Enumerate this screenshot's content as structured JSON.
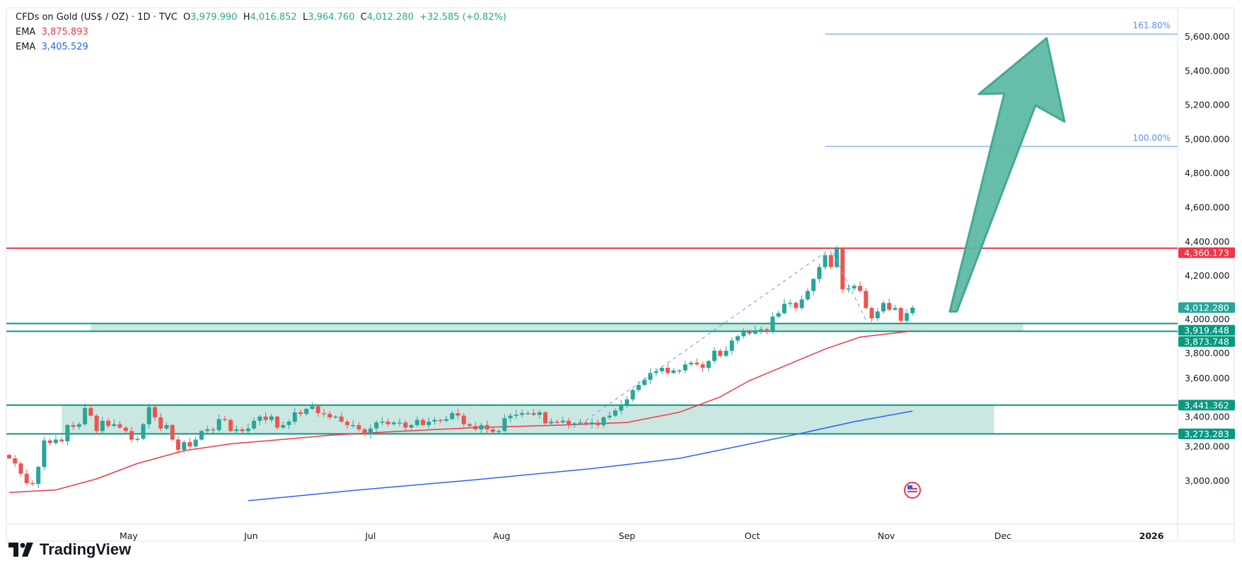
{
  "header": {
    "symbol": "CFDs on Gold (US$ / OZ) · 1D · TVC",
    "open_label": "O",
    "open": "3,979.990",
    "high_label": "H",
    "high": "4,016.852",
    "low_label": "L",
    "low": "3,964.760",
    "close_label": "C",
    "close": "4,012.280",
    "change": "+32.585 (+0.82%)",
    "ema1_label": "EMA",
    "ema1_value": "3,875.893",
    "ema2_label": "EMA",
    "ema2_value": "3,405.529"
  },
  "brand": {
    "name": "TradingView"
  },
  "colors": {
    "up": "#26a69a",
    "down": "#ef5350",
    "ema_fast": "#f23645",
    "ema_slow": "#2962ff",
    "zone": "#c8e6e0",
    "zone_line": "#089981",
    "resistance": "#f23645",
    "fib": "#5b8def",
    "arrow": "#5dbaa6"
  },
  "chart_data": {
    "type": "candlestick",
    "ylim": [
      2880,
      5680
    ],
    "y_ticks": [
      "3,000.000",
      "3,200.000",
      "3,400.000",
      "3,600.000",
      "3,800.000",
      "4,000.000",
      "4,200.000",
      "4,400.000",
      "4,600.000",
      "4,800.000",
      "5,000.000",
      "5,200.000",
      "5,400.000",
      "5,600.000"
    ],
    "y_tick_values": [
      3000,
      3200,
      3400,
      3600,
      3800,
      4000,
      4200,
      4400,
      4600,
      4800,
      5000,
      5200,
      5400,
      5600
    ],
    "x_ticks": [
      {
        "label": "May",
        "index": 20.5
      },
      {
        "label": "Jun",
        "index": 41.5
      },
      {
        "label": "Jul",
        "index": 62
      },
      {
        "label": "Aug",
        "index": 84.5
      },
      {
        "label": "Sep",
        "index": 106
      },
      {
        "label": "Oct",
        "index": 127.5
      },
      {
        "label": "Nov",
        "index": 150.5
      },
      {
        "label": "Dec",
        "index": 170.5
      },
      {
        "label": "2026",
        "index": 196
      }
    ],
    "closes": [
      3130,
      3100,
      3040,
      2985,
      2980,
      3080,
      3235,
      3220,
      3240,
      3230,
      3325,
      3315,
      3330,
      3425,
      3380,
      3290,
      3350,
      3320,
      3330,
      3310,
      3290,
      3240,
      3245,
      3330,
      3430,
      3370,
      3305,
      3325,
      3240,
      3180,
      3225,
      3200,
      3240,
      3290,
      3300,
      3295,
      3360,
      3355,
      3290,
      3300,
      3290,
      3305,
      3350,
      3375,
      3355,
      3375,
      3310,
      3325,
      3345,
      3400,
      3390,
      3420,
      3435,
      3395,
      3390,
      3370,
      3375,
      3345,
      3325,
      3325,
      3300,
      3270,
      3305,
      3340,
      3345,
      3330,
      3340,
      3340,
      3310,
      3325,
      3355,
      3325,
      3345,
      3355,
      3350,
      3360,
      3395,
      3380,
      3330,
      3320,
      3300,
      3325,
      3300,
      3285,
      3290,
      3365,
      3380,
      3385,
      3395,
      3395,
      3385,
      3400,
      3335,
      3345,
      3340,
      3350,
      3325,
      3335,
      3340,
      3330,
      3340,
      3325,
      3370,
      3380,
      3410,
      3445,
      3475,
      3530,
      3560,
      3590,
      3630,
      3640,
      3660,
      3630,
      3645,
      3645,
      3680,
      3690,
      3680,
      3660,
      3700,
      3760,
      3730,
      3760,
      3820,
      3845,
      3870,
      3860,
      3880,
      3885,
      3875,
      3960,
      3980,
      4035,
      4040,
      4010,
      4060,
      4110,
      4180,
      4250,
      4320,
      4250,
      4360,
      4120,
      4125,
      4140,
      4110,
      4010,
      3950,
      3990,
      4040,
      4000,
      4010,
      3935,
      3980,
      4012
    ],
    "first_open": 3150,
    "ema_fast": {
      "label": "EMA",
      "points": [
        [
          0,
          2930
        ],
        [
          8,
          2945
        ],
        [
          15,
          3010
        ],
        [
          22,
          3100
        ],
        [
          30,
          3175
        ],
        [
          38,
          3215
        ],
        [
          45,
          3235
        ],
        [
          55,
          3265
        ],
        [
          65,
          3285
        ],
        [
          80,
          3310
        ],
        [
          95,
          3325
        ],
        [
          106,
          3340
        ],
        [
          115,
          3400
        ],
        [
          122,
          3490
        ],
        [
          127,
          3585
        ],
        [
          133,
          3670
        ],
        [
          140,
          3770
        ],
        [
          146,
          3840
        ],
        [
          155,
          3876
        ]
      ]
    },
    "ema_slow": {
      "label": "EMA",
      "points": [
        [
          41,
          2882
        ],
        [
          60,
          2945
        ],
        [
          80,
          3005
        ],
        [
          100,
          3070
        ],
        [
          115,
          3130
        ],
        [
          125,
          3200
        ],
        [
          135,
          3270
        ],
        [
          145,
          3345
        ],
        [
          155,
          3407
        ]
      ]
    },
    "levels": [
      {
        "value": 4360.173,
        "label": "4,360.173",
        "kind": "resistance"
      },
      {
        "value": 3919.448,
        "label": "3,919.448",
        "kind": "zone"
      },
      {
        "value": 3873.748,
        "label": "3,873.748",
        "kind": "zone"
      },
      {
        "value": 3441.362,
        "label": "3,441.362",
        "kind": "zone"
      },
      {
        "value": 3273.283,
        "label": "3,273.283",
        "kind": "zone"
      }
    ],
    "zones": [
      {
        "top": 3441.362,
        "bottom": 3273.283,
        "from_index": 9,
        "to_index": 169
      },
      {
        "top": 3919.448,
        "bottom": 3873.748,
        "from_index": 14,
        "to_index": 174
      }
    ],
    "last_price": {
      "value": 4012.28,
      "label": "4,012.280"
    },
    "fib_levels": [
      {
        "label": "100.00%",
        "value": 4956
      },
      {
        "label": "161.80%",
        "value": 5614
      }
    ],
    "fib_from_index": 140,
    "trend_path": [
      [
        98,
        3330
      ],
      [
        141,
        4360
      ],
      [
        147,
        3940
      ]
    ],
    "projection_arrow": {
      "from": [
        162,
        3990
      ],
      "to": [
        178,
        5590
      ]
    }
  }
}
